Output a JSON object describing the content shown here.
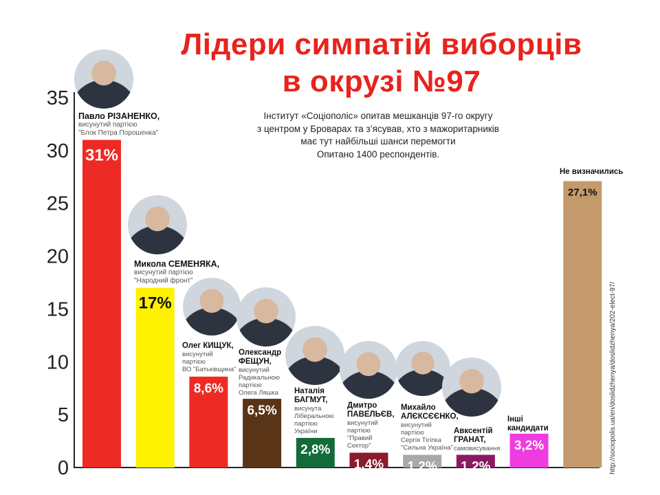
{
  "title_lines": [
    "Лідери симпатій виборців",
    "в окрузі №97"
  ],
  "subtitle_lines": [
    "Інститут «Соціополіс» опитав мешканців 97-го округу",
    "з центром у Броварах та з’ясував, хто з мажоритарників",
    "має тут найбільші шанси перемогти",
    "Опитано 1400 респондентів."
  ],
  "source_url": "http://sociopolis.ua/en/doslidzhenya/doslidzhenya/202-elect-97/",
  "chart_data": {
    "type": "bar",
    "ylim": [
      0,
      35
    ],
    "yticks": [
      "0",
      "5",
      "10",
      "15",
      "20",
      "25",
      "30",
      "35"
    ],
    "categories": [
      "Павло РІЗАНЕНКО",
      "Микола СЕМЕНЯКА",
      "Олег КИЩУК",
      "Олександр ФЕЩУН",
      "Наталія БАГМУТ",
      "Дмитро ПАВЕЛЬЄВ",
      "Михайло АЛЄКСЄЄНКО",
      "Авксентій ГРАНАТ",
      "Інші кандидати",
      "Не визначились"
    ],
    "values": [
      31,
      17,
      8.6,
      6.5,
      2.8,
      1.4,
      1.2,
      1.2,
      3.2,
      27.1
    ],
    "data_labels": [
      "31%",
      "17%",
      "8,6%",
      "6,5%",
      "2,8%",
      "1,4%",
      "1,2%",
      "1,2%",
      "3,2%",
      "27,1%"
    ],
    "colors": [
      "#ee2a24",
      "#fff200",
      "#ee2a24",
      "#5a3416",
      "#146b3a",
      "#8a1a2c",
      "#a7a9ac",
      "#8b1a63",
      "#ee3ce0",
      "#c49a6c"
    ],
    "label_colors": [
      "#ffffff",
      "#111111",
      "#ffffff",
      "#ffffff",
      "#ffffff",
      "#ffffff",
      "#ffffff",
      "#ffffff",
      "#ffffff",
      "#111111"
    ],
    "grid": false
  },
  "candidates": [
    {
      "name": "Павло РІЗАНЕНКО,",
      "note_lines": [
        "висунутий партією",
        "\"Блок Петра Порошенка\""
      ],
      "photo": "candidate-photo"
    },
    {
      "name": "Микола СЕМЕНЯКА,",
      "note_lines": [
        "висунутий партією",
        "\"Народний фронт\""
      ],
      "photo": "candidate-photo"
    },
    {
      "name": "Олег КИЩУК,",
      "note_lines": [
        "висунутий",
        "партією",
        "ВО \"Батьківщина\""
      ],
      "photo": "candidate-photo"
    },
    {
      "name": "Олександр ФЕЩУН,",
      "note_lines": [
        "висунутий",
        "Радикальною",
        "партією",
        "Олега Ляшка"
      ],
      "photo": "candidate-photo"
    },
    {
      "name": "Наталія БАГМУТ,",
      "note_lines": [
        "висунута",
        "Ліберальною",
        "партією",
        "України"
      ],
      "photo": "candidate-photo"
    },
    {
      "name": "Дмитро ПАВЕЛЬЄВ,",
      "note_lines": [
        "висунутий",
        "партією",
        "\"Правий",
        "Сектор\""
      ],
      "photo": "candidate-photo"
    },
    {
      "name": "Михайло АЛЄКСЄЄНКО,",
      "note_lines": [
        "висунутий",
        "партією",
        "Сергія Тігіпка",
        "\"Сильна Україна\""
      ],
      "photo": "candidate-photo"
    },
    {
      "name": "Авксентій ГРАНАТ,",
      "note_lines": [
        "самовисування"
      ],
      "photo": "candidate-photo"
    },
    {
      "name": "Інші кандидати",
      "note_lines": [],
      "photo": ""
    },
    {
      "name": "Не визначились",
      "note_lines": [],
      "photo": ""
    }
  ]
}
